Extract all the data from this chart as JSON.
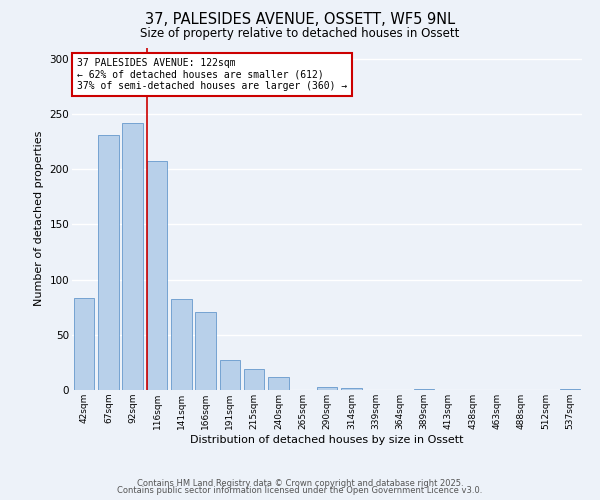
{
  "title": "37, PALESIDES AVENUE, OSSETT, WF5 9NL",
  "subtitle": "Size of property relative to detached houses in Ossett",
  "bar_labels": [
    "42sqm",
    "67sqm",
    "92sqm",
    "116sqm",
    "141sqm",
    "166sqm",
    "191sqm",
    "215sqm",
    "240sqm",
    "265sqm",
    "290sqm",
    "314sqm",
    "339sqm",
    "364sqm",
    "389sqm",
    "413sqm",
    "438sqm",
    "463sqm",
    "488sqm",
    "512sqm",
    "537sqm"
  ],
  "bar_values": [
    83,
    231,
    242,
    207,
    82,
    71,
    27,
    19,
    12,
    0,
    3,
    2,
    0,
    0,
    1,
    0,
    0,
    0,
    0,
    0,
    1
  ],
  "bar_color": "#b8d0ea",
  "bar_edge_color": "#6699cc",
  "xlabel": "Distribution of detached houses by size in Ossett",
  "ylabel": "Number of detached properties",
  "ylim": [
    0,
    310
  ],
  "yticks": [
    0,
    50,
    100,
    150,
    200,
    250,
    300
  ],
  "property_line_index": 3,
  "property_line_color": "#cc0000",
  "annotation_title": "37 PALESIDES AVENUE: 122sqm",
  "annotation_line1": "← 62% of detached houses are smaller (612)",
  "annotation_line2": "37% of semi-detached houses are larger (360) →",
  "annotation_box_color": "#ffffff",
  "annotation_box_edge": "#cc0000",
  "footer1": "Contains HM Land Registry data © Crown copyright and database right 2025.",
  "footer2": "Contains public sector information licensed under the Open Government Licence v3.0.",
  "background_color": "#edf2f9",
  "grid_color": "#ffffff"
}
